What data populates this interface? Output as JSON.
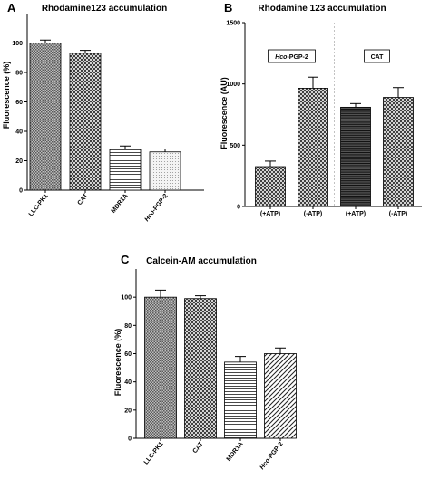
{
  "chart_data": [
    {
      "panel": "A",
      "type": "bar",
      "title": "Rhodamine123  accumulation",
      "ylabel": "Fluorescence (%)",
      "ylim": [
        0,
        120
      ],
      "yticks": [
        0,
        20,
        40,
        60,
        80,
        100
      ],
      "categories": [
        "LLC-PK1",
        "CAT",
        "MDR1A",
        "Hco-PGP-2"
      ],
      "italic_prefix": [
        "",
        "",
        "",
        "Hco"
      ],
      "values": [
        100,
        93,
        28,
        26
      ],
      "errors": [
        2,
        2,
        2,
        2
      ],
      "fills": [
        "dots",
        "crosshatch",
        "horizontal",
        "finedots"
      ]
    },
    {
      "panel": "B",
      "type": "bar",
      "title": "Rhodamine 123  accumulation",
      "ylabel": "Fluorescence (AU)",
      "ylim": [
        0,
        1500
      ],
      "yticks": [
        0,
        500,
        1000,
        1500
      ],
      "categories": [
        "(+ATP)",
        "(-ATP)",
        "(+ATP)",
        "(-ATP)"
      ],
      "values": [
        325,
        965,
        810,
        890
      ],
      "errors": [
        45,
        90,
        30,
        80
      ],
      "fills": [
        "crosshatch",
        "crosshatch",
        "horizontal-dark",
        "crosshatch"
      ],
      "groups": [
        {
          "label": "Hco-PGP-2",
          "italic_prefix": "Hco"
        },
        {
          "label": "CAT",
          "italic_prefix": ""
        }
      ]
    },
    {
      "panel": "C",
      "type": "bar",
      "title": "Calcein-AM accumulation",
      "ylabel": "Fluorescence (%)",
      "ylim": [
        0,
        120
      ],
      "yticks": [
        0,
        20,
        40,
        60,
        80,
        100
      ],
      "categories": [
        "LLC-PK1",
        "CAT",
        "MDR1A",
        "Hco-PGP-2"
      ],
      "italic_prefix": [
        "",
        "",
        "",
        "Hco"
      ],
      "values": [
        100,
        99,
        54,
        60
      ],
      "errors": [
        5,
        2,
        4,
        4
      ],
      "fills": [
        "dots",
        "crosshatch",
        "horizontal",
        "diagonal"
      ]
    }
  ]
}
